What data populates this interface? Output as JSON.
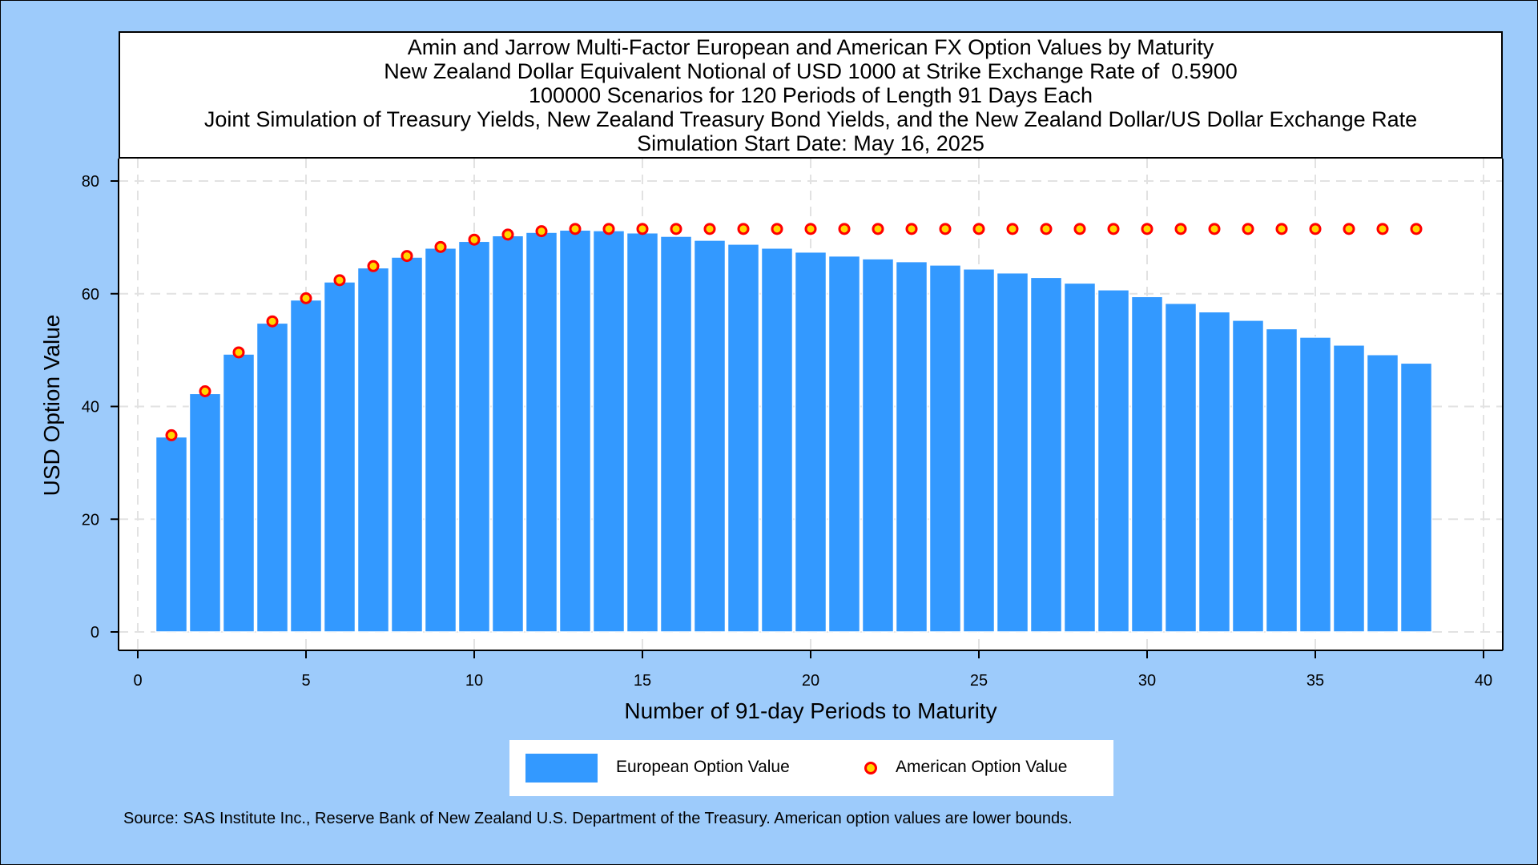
{
  "title_lines": [
    "Amin and Jarrow Multi-Factor European and American FX Option Values by Maturity",
    "New Zealand Dollar Equivalent Notional of USD 1000 at Strike Exchange Rate of  0.5900",
    "100000 Scenarios for 120 Periods of Length 91 Days Each",
    "Joint Simulation of Treasury Yields, New Zealand Treasury Bond Yields, and the New Zealand Dollar/US Dollar Exchange Rate",
    "Simulation Start Date: May 16, 2025"
  ],
  "footnote": "Source: SAS Institute Inc., Reserve Bank of New Zealand U.S. Department of the Treasury. American option values are lower bounds.",
  "colors": {
    "bar": "#3399ff",
    "dot_fill": "#ffd700",
    "dot_stroke": "#ff0000",
    "background": "#9dcbfb"
  },
  "chart_data": {
    "type": "bar",
    "xlabel": "Number of 91-day Periods to Maturity",
    "ylabel": "USD Option Value",
    "xlim": [
      0,
      40
    ],
    "ylim": [
      0,
      80
    ],
    "xticks": [
      0,
      5,
      10,
      15,
      20,
      25,
      30,
      35,
      40
    ],
    "yticks": [
      0,
      20,
      40,
      60,
      80
    ],
    "grid": true,
    "legend_position": "bottom",
    "x": [
      1,
      2,
      3,
      4,
      5,
      6,
      7,
      8,
      9,
      10,
      11,
      12,
      13,
      14,
      15,
      16,
      17,
      18,
      19,
      20,
      21,
      22,
      23,
      24,
      25,
      26,
      27,
      28,
      29,
      30,
      31,
      32,
      33,
      34,
      35,
      36,
      37,
      38
    ],
    "series": [
      {
        "name": "European Option Value",
        "type": "bar",
        "values": [
          34.6,
          42.3,
          49.3,
          54.8,
          58.9,
          62.1,
          64.6,
          66.5,
          68.1,
          69.3,
          70.3,
          70.9,
          71.3,
          71.2,
          70.8,
          70.2,
          69.5,
          68.8,
          68.1,
          67.4,
          66.7,
          66.2,
          65.7,
          65.1,
          64.4,
          63.7,
          62.9,
          61.9,
          60.7,
          59.5,
          58.3,
          56.8,
          55.3,
          53.8,
          52.3,
          50.9,
          49.2,
          47.7
        ]
      },
      {
        "name": "American Option Value",
        "type": "scatter",
        "values": [
          34.9,
          42.7,
          49.6,
          55.1,
          59.2,
          62.4,
          64.9,
          66.7,
          68.3,
          69.6,
          70.5,
          71.1,
          71.5,
          71.5,
          71.5,
          71.5,
          71.5,
          71.5,
          71.5,
          71.5,
          71.5,
          71.5,
          71.5,
          71.5,
          71.5,
          71.5,
          71.5,
          71.5,
          71.5,
          71.5,
          71.5,
          71.5,
          71.5,
          71.5,
          71.5,
          71.5,
          71.5,
          71.5
        ]
      }
    ]
  }
}
